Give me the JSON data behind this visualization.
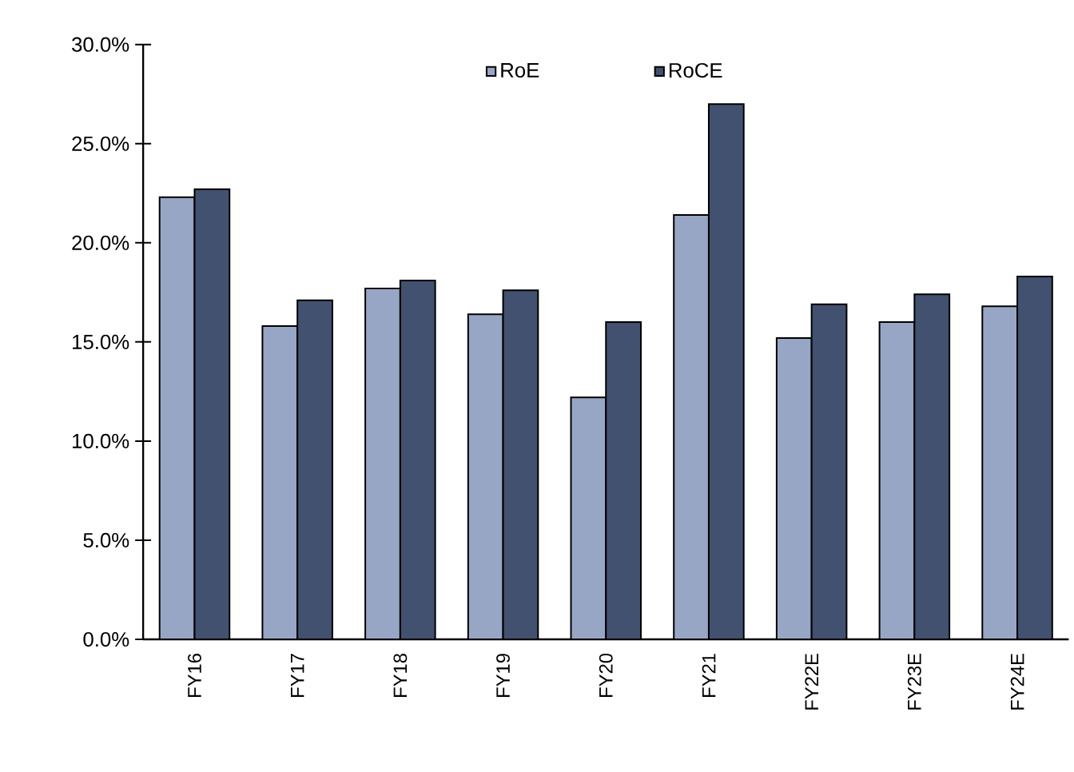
{
  "chart_data": {
    "type": "bar",
    "categories": [
      "FY16",
      "FY17",
      "FY18",
      "FY19",
      "FY20",
      "FY21",
      "FY22E",
      "FY23E",
      "FY24E"
    ],
    "series": [
      {
        "name": "RoE",
        "color": "#97a6c4",
        "values": [
          22.3,
          15.8,
          17.7,
          16.4,
          12.2,
          21.4,
          15.2,
          16.0,
          16.8
        ]
      },
      {
        "name": "RoCE",
        "color": "#41516f",
        "values": [
          22.7,
          17.1,
          18.1,
          17.6,
          16.0,
          27.0,
          16.9,
          17.4,
          18.3
        ]
      }
    ],
    "ylim": [
      0,
      30
    ],
    "yticks": [
      {
        "value": 0,
        "label": "0.0%"
      },
      {
        "value": 5,
        "label": "5.0%"
      },
      {
        "value": 10,
        "label": "10.0%"
      },
      {
        "value": 15,
        "label": "15.0%"
      },
      {
        "value": 20,
        "label": "20.0%"
      },
      {
        "value": 25,
        "label": "25.0%"
      },
      {
        "value": 30,
        "label": "30.0%"
      }
    ],
    "grid": false,
    "legend": "top"
  }
}
